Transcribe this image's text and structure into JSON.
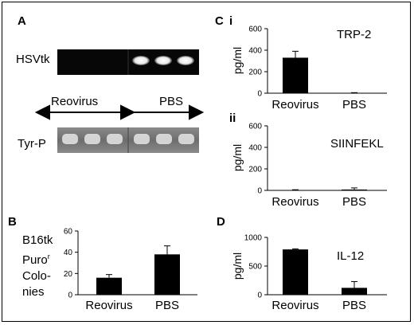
{
  "panels": {
    "A": {
      "label": "A",
      "band1": "HSVtk",
      "band2": "Tyr-P",
      "group1": "Reovirus",
      "group2": "PBS"
    },
    "B": {
      "label": "B",
      "ylabel_lines": [
        "B16tk",
        "Puro",
        "Colo-",
        "nies"
      ],
      "ylabel_sup": "r"
    },
    "C": {
      "label": "C",
      "sub_i": "i",
      "sub_ii": "ii"
    },
    "D": {
      "label": "D"
    }
  },
  "colors": {
    "bar": "#000000",
    "gel_dark": "#0a0a0a",
    "gel_band_bright": "#f2f2f2",
    "gel_grey": "#7d7d7d"
  },
  "chart_data": [
    {
      "id": "B",
      "type": "bar",
      "categories": [
        "Reovirus",
        "PBS"
      ],
      "values": [
        16,
        38
      ],
      "errors": [
        3,
        8
      ],
      "ylim": [
        0,
        60
      ],
      "yticks": [
        0,
        20,
        40,
        60
      ],
      "ylabel": "",
      "annotation": ""
    },
    {
      "id": "Ci",
      "type": "bar",
      "categories": [
        "Reovirus",
        "PBS"
      ],
      "values": [
        330,
        3
      ],
      "errors": [
        60,
        2
      ],
      "ylim": [
        0,
        600
      ],
      "yticks": [
        0,
        200,
        400,
        600
      ],
      "ylabel": "pg/ml",
      "annotation": "TRP-2"
    },
    {
      "id": "Cii",
      "type": "bar",
      "categories": [
        "Reovirus",
        "PBS"
      ],
      "values": [
        3,
        8
      ],
      "errors": [
        3,
        15
      ],
      "ylim": [
        0,
        600
      ],
      "yticks": [
        0,
        200,
        400,
        600
      ],
      "ylabel": "pg/ml",
      "annotation": "SIINFEKL"
    },
    {
      "id": "D",
      "type": "bar",
      "categories": [
        "Reovirus",
        "PBS"
      ],
      "values": [
        790,
        120
      ],
      "errors": [
        10,
        110
      ],
      "ylim": [
        0,
        1000
      ],
      "yticks": [
        0,
        500,
        1000
      ],
      "ylabel": "pg/ml",
      "annotation": "IL-12"
    }
  ]
}
